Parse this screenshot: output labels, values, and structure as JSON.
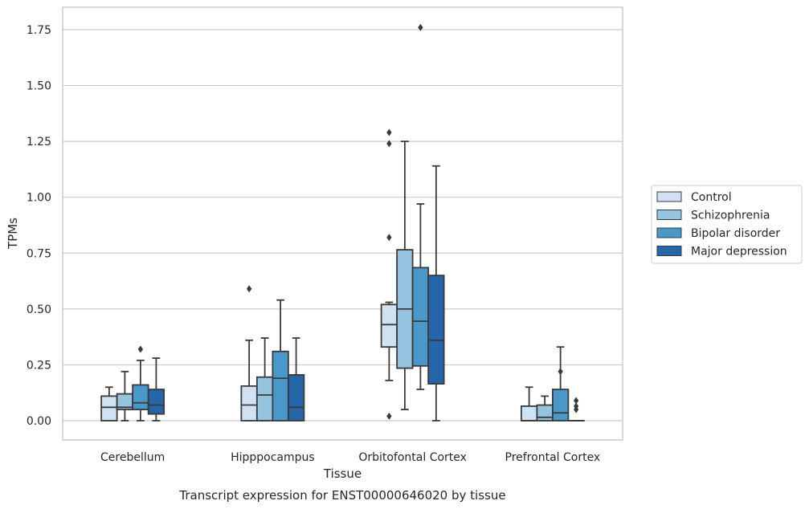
{
  "chart_data": {
    "type": "box",
    "xlabel": "Tissue",
    "ylabel": "TPMs",
    "caption": "Transcript expression for ENST00000646020 by tissue",
    "ylim": [
      -0.085,
      1.85
    ],
    "yticks": [
      "0.00",
      "0.25",
      "0.50",
      "0.75",
      "1.00",
      "1.25",
      "1.50",
      "1.75"
    ],
    "grid": "horizontal",
    "legend_position": "right",
    "categories": [
      "Cerebellum",
      "Hipppocampus",
      "Orbitofontal Cortex",
      "Prefrontal Cortex"
    ],
    "series": [
      {
        "name": "Control",
        "color": "#d0e1f2",
        "boxes": [
          {
            "whislo": 0.0,
            "q1": 0.0,
            "med": 0.06,
            "q3": 0.11,
            "whishi": 0.15,
            "fliers": []
          },
          {
            "whislo": 0.0,
            "q1": 0.0,
            "med": 0.07,
            "q3": 0.155,
            "whishi": 0.36,
            "fliers": [
              0.59
            ]
          },
          {
            "whislo": 0.18,
            "q1": 0.33,
            "med": 0.43,
            "q3": 0.52,
            "whishi": 0.53,
            "fliers": [
              0.02,
              0.82,
              1.24,
              1.29
            ]
          },
          {
            "whislo": 0.0,
            "q1": 0.0,
            "med": 0.0,
            "q3": 0.065,
            "whishi": 0.15,
            "fliers": []
          }
        ]
      },
      {
        "name": "Schizophrenia",
        "color": "#94c4df",
        "boxes": [
          {
            "whislo": 0.0,
            "q1": 0.05,
            "med": 0.06,
            "q3": 0.12,
            "whishi": 0.22,
            "fliers": []
          },
          {
            "whislo": 0.0,
            "q1": 0.0,
            "med": 0.115,
            "q3": 0.195,
            "whishi": 0.37,
            "fliers": []
          },
          {
            "whislo": 0.05,
            "q1": 0.235,
            "med": 0.5,
            "q3": 0.765,
            "whishi": 1.25,
            "fliers": []
          },
          {
            "whislo": 0.0,
            "q1": 0.0,
            "med": 0.015,
            "q3": 0.07,
            "whishi": 0.11,
            "fliers": []
          }
        ]
      },
      {
        "name": "Bipolar disorder",
        "color": "#4a98c9",
        "boxes": [
          {
            "whislo": 0.0,
            "q1": 0.05,
            "med": 0.08,
            "q3": 0.16,
            "whishi": 0.27,
            "fliers": [
              0.32
            ]
          },
          {
            "whislo": 0.0,
            "q1": 0.0,
            "med": 0.19,
            "q3": 0.31,
            "whishi": 0.54,
            "fliers": []
          },
          {
            "whislo": 0.14,
            "q1": 0.245,
            "med": 0.445,
            "q3": 0.685,
            "whishi": 0.97,
            "fliers": [
              1.76
            ]
          },
          {
            "whislo": 0.0,
            "q1": 0.0,
            "med": 0.035,
            "q3": 0.14,
            "whishi": 0.33,
            "fliers": [
              0.22
            ]
          }
        ]
      },
      {
        "name": "Major depression",
        "color": "#2565a8",
        "boxes": [
          {
            "whislo": 0.0,
            "q1": 0.03,
            "med": 0.07,
            "q3": 0.14,
            "whishi": 0.28,
            "fliers": []
          },
          {
            "whislo": 0.0,
            "q1": 0.0,
            "med": 0.06,
            "q3": 0.205,
            "whishi": 0.37,
            "fliers": []
          },
          {
            "whislo": 0.0,
            "q1": 0.165,
            "med": 0.36,
            "q3": 0.65,
            "whishi": 1.14,
            "fliers": []
          },
          {
            "whislo": 0.0,
            "q1": 0.0,
            "med": 0.0,
            "q3": 0.0,
            "whishi": 0.0,
            "fliers": [
              0.05,
              0.065,
              0.09
            ]
          }
        ]
      }
    ]
  }
}
